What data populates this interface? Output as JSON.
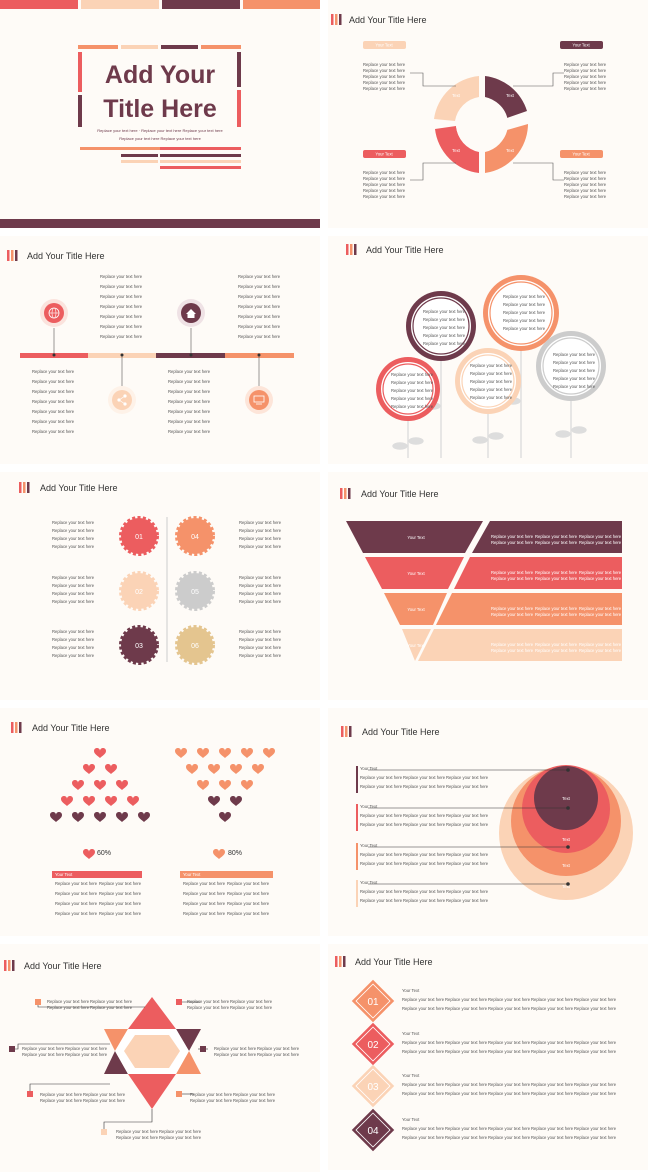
{
  "colors": {
    "plum": "#6e3a4b",
    "coral": "#ec5d5f",
    "peach": "#f5926a",
    "light": "#fbd3b6",
    "sand": "#e4c58f",
    "gray": "#cccccc"
  },
  "common": {
    "slide_title": "Add Your Title Here",
    "filler": "Replace your text here",
    "your_text": "Your Text",
    "text": "Text"
  },
  "cover": {
    "title_line1": "Add Your",
    "title_line2": "Title Here",
    "sub1": "Replace your text here · Replace your text here Replace your text here",
    "sub2": "Replace your text here Replace your text here"
  },
  "gears": {
    "n1": "01",
    "n2": "02",
    "n3": "03",
    "n4": "04",
    "n5": "05",
    "n6": "06"
  },
  "hearts": {
    "pct1": "60%",
    "pct2": "80%"
  },
  "steps": {
    "s1": "01",
    "s2": "02",
    "s3": "03",
    "s4": "04"
  }
}
